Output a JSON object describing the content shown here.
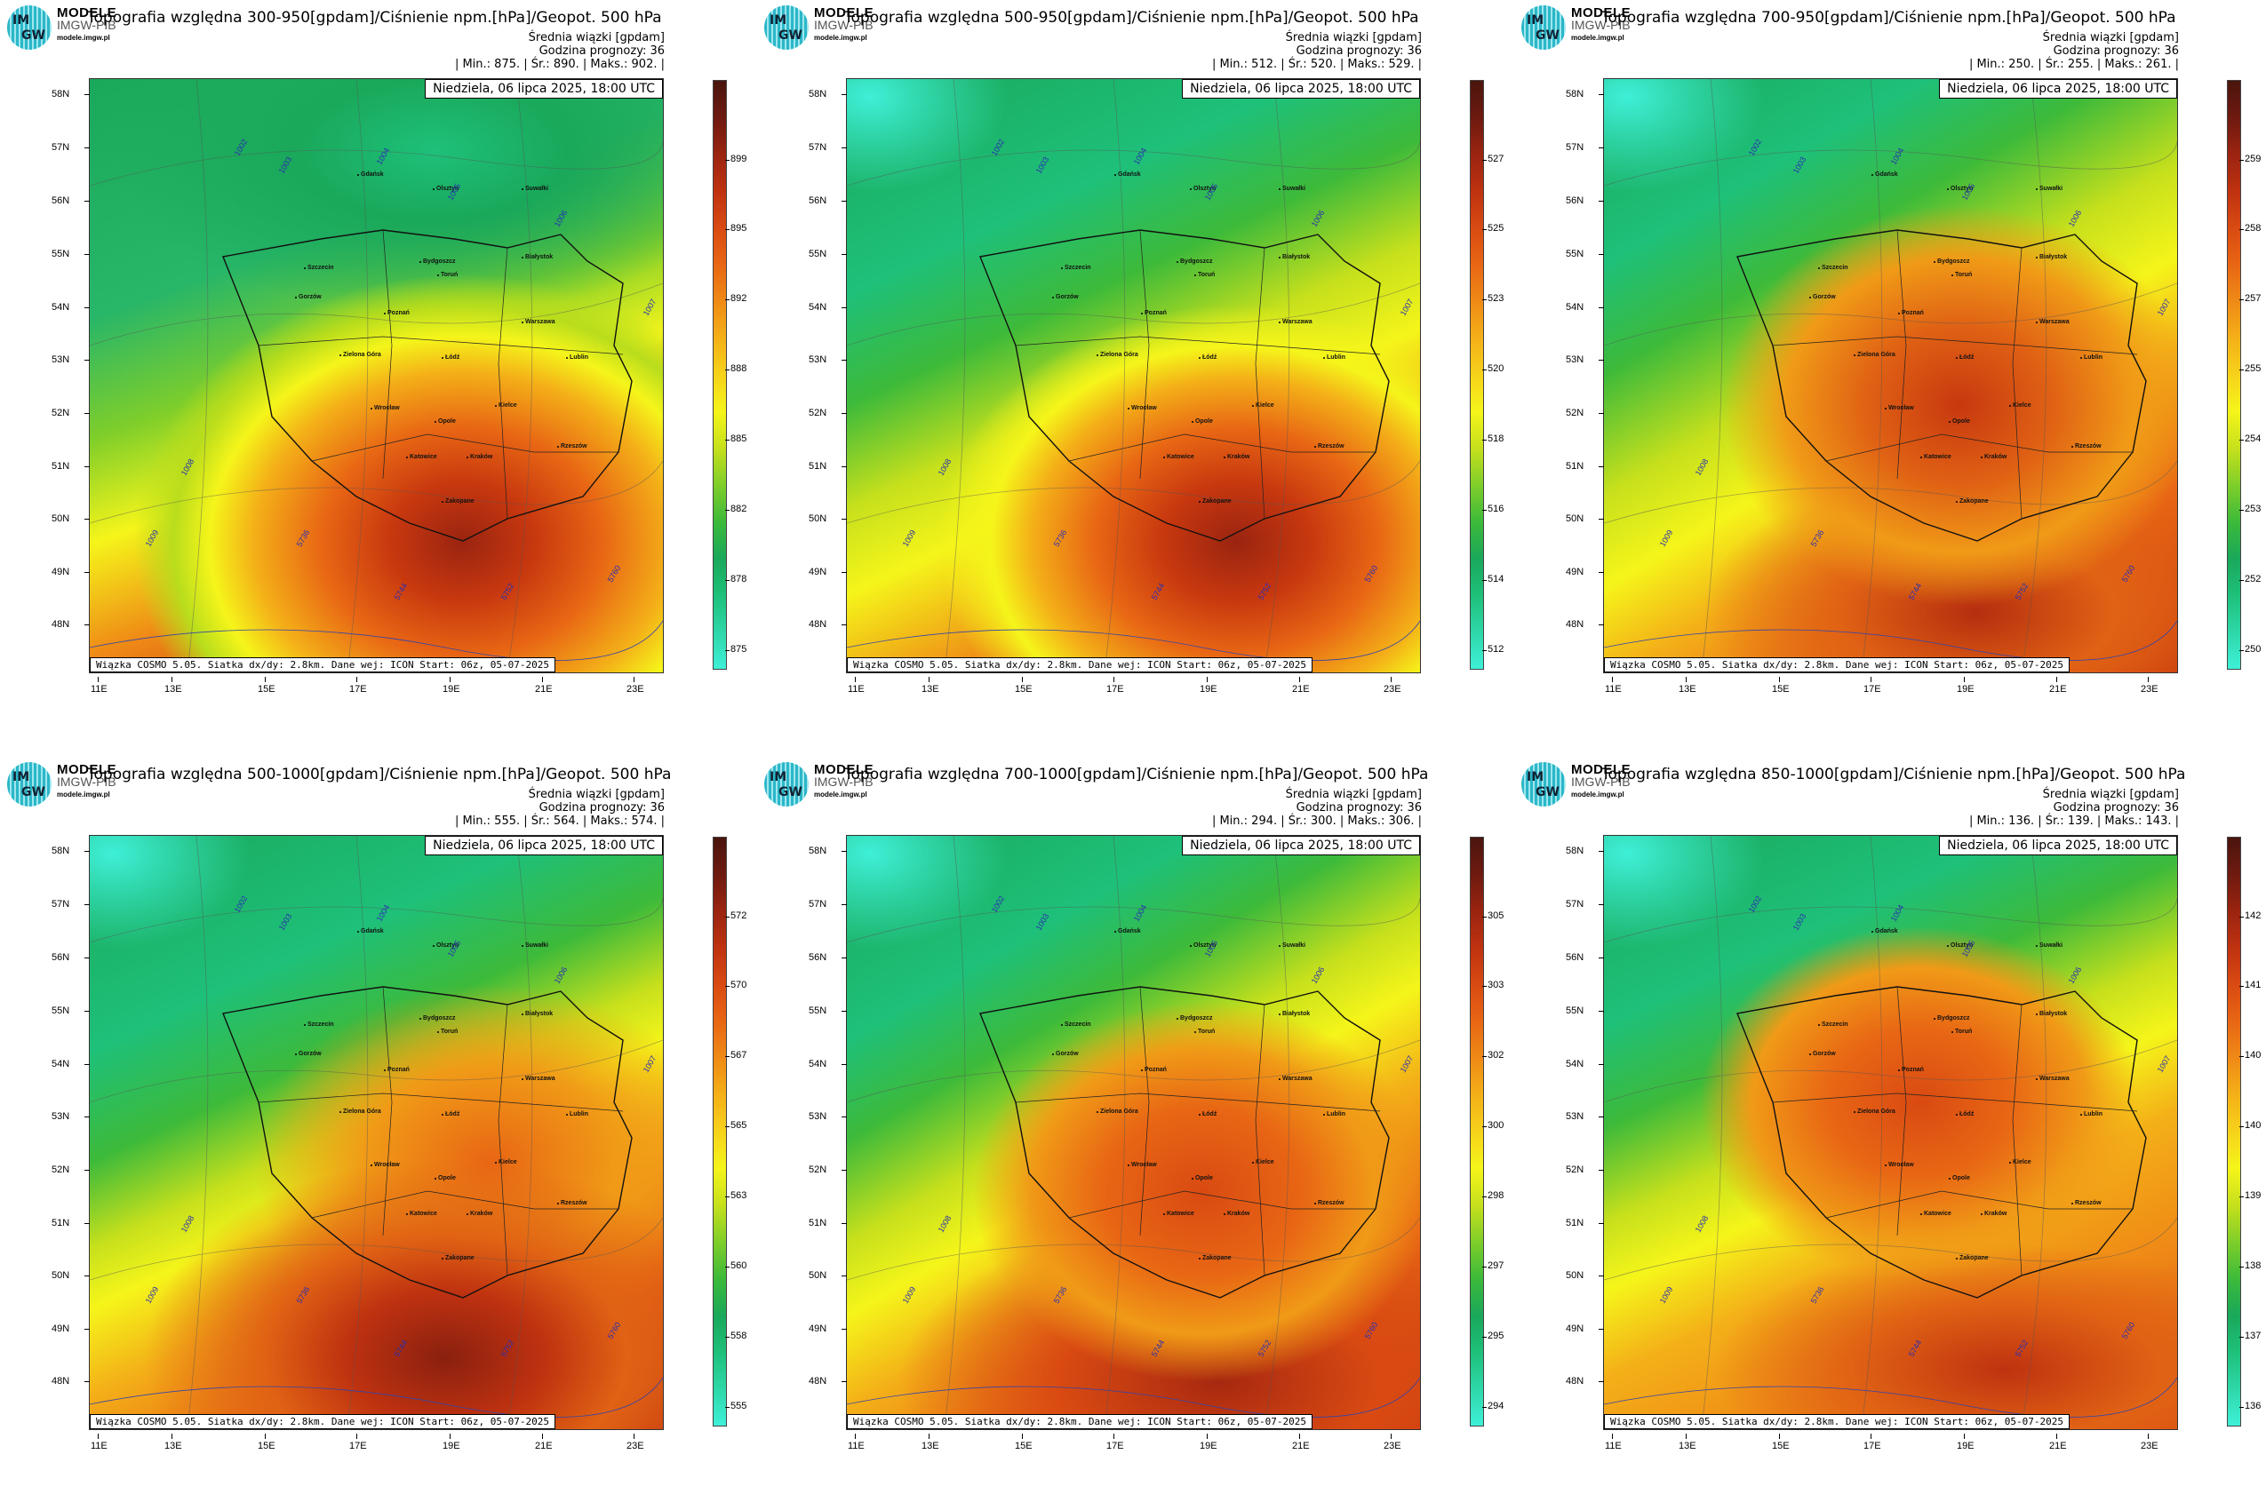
{
  "header": {
    "brand": "MODELE",
    "brand_sub": "IMGW-PIB",
    "site": "modele.imgw.pl",
    "logo_im": "IM",
    "logo_gw": "GW"
  },
  "common": {
    "avg_label": "Średnia wiązki [gpdam]",
    "forecast_hour": "Godzina prognozy: 36",
    "date": "Niedziela, 06 lipca 2025, 18:00 UTC",
    "credit": "Wiązka COSMO 5.05. Siatka dx/dy: 2.8km. Dane wej: ICON Start: 06z, 05-07-2025",
    "lat_labels": [
      "58N",
      "57N",
      "56N",
      "55N",
      "54N",
      "53N",
      "52N",
      "51N",
      "50N",
      "49N",
      "48N"
    ],
    "lon_labels": [
      "11E",
      "13E",
      "15E",
      "17E",
      "19E",
      "21E",
      "23E"
    ],
    "cities": [
      "Gdańsk",
      "Olsztyn",
      "Suwałki",
      "Szczecin",
      "Bydgoszcz",
      "Toruń",
      "Białystok",
      "Gorzów",
      "Poznań",
      "Warszawa",
      "Zielona Góra",
      "Łódź",
      "Lublin",
      "Wrocław",
      "Opole",
      "Kielce",
      "Katowice",
      "Kraków",
      "Rzeszów",
      "Zakopane"
    ],
    "isobars": [
      "1002",
      "1003",
      "1004",
      "1005",
      "1006",
      "1007",
      "1008",
      "1009",
      "5736",
      "5744",
      "5752",
      "5760"
    ]
  },
  "colors": {
    "scale": [
      "#3ef0d8",
      "#2ed7a8",
      "#1ec07a",
      "#1aa85a",
      "#3dba3a",
      "#7fce2a",
      "#c6e01c",
      "#f5f51a",
      "#f6d21a",
      "#f4b018",
      "#ef8a16",
      "#e86614",
      "#d94a12",
      "#bf3210",
      "#9a2410",
      "#6e1a10",
      "#4a150e"
    ]
  },
  "panels": [
    {
      "title": "Topografia względna 300-950[gpdam]/Ciśnienie npm.[hPa]/Geopot. 500 hPa",
      "stats": "| Min.:    875. | Śr.:    890. | Maks.:    902. |",
      "scale": [
        "899",
        "895",
        "892",
        "888",
        "885",
        "882",
        "878",
        "875"
      ],
      "field": "a"
    },
    {
      "title": "Topografia względna 500-950[gpdam]/Ciśnienie npm.[hPa]/Geopot. 500 hPa",
      "stats": "| Min.:    512. | Śr.:    520. | Maks.:    529. |",
      "scale": [
        "527",
        "525",
        "523",
        "520",
        "518",
        "516",
        "514",
        "512"
      ],
      "field": "b"
    },
    {
      "title": "Topografia względna 700-950[gpdam]/Ciśnienie npm.[hPa]/Geopot. 500 hPa",
      "stats": "| Min.:    250. | Śr.:    255. | Maks.:    261. |",
      "scale": [
        "259",
        "258",
        "257",
        "255",
        "254",
        "253",
        "252",
        "250"
      ],
      "field": "c"
    },
    {
      "title": "Topografia względna 500-1000[gpdam]/Ciśnienie npm.[hPa]/Geopot. 500 hPa",
      "stats": "| Min.:    555. | Śr.:    564. | Maks.:    574. |",
      "scale": [
        "572",
        "570",
        "567",
        "565",
        "563",
        "560",
        "558",
        "555"
      ],
      "field": "d"
    },
    {
      "title": "Topografia względna 700-1000[gpdam]/Ciśnienie npm.[hPa]/Geopot. 500 hPa",
      "stats": "| Min.:    294. | Śr.:    300. | Maks.:    306. |",
      "scale": [
        "305",
        "303",
        "302",
        "300",
        "298",
        "297",
        "295",
        "294"
      ],
      "field": "e"
    },
    {
      "title": "Topografia względna 850-1000[gpdam]/Ciśnienie npm.[hPa]/Geopot. 500 hPa",
      "stats": "| Min.:    136. | Śr.:    139. | Maks.:    143. |",
      "scale": [
        "142",
        "141",
        "140",
        "140",
        "139",
        "138",
        "137",
        "136"
      ],
      "field": "f"
    }
  ]
}
